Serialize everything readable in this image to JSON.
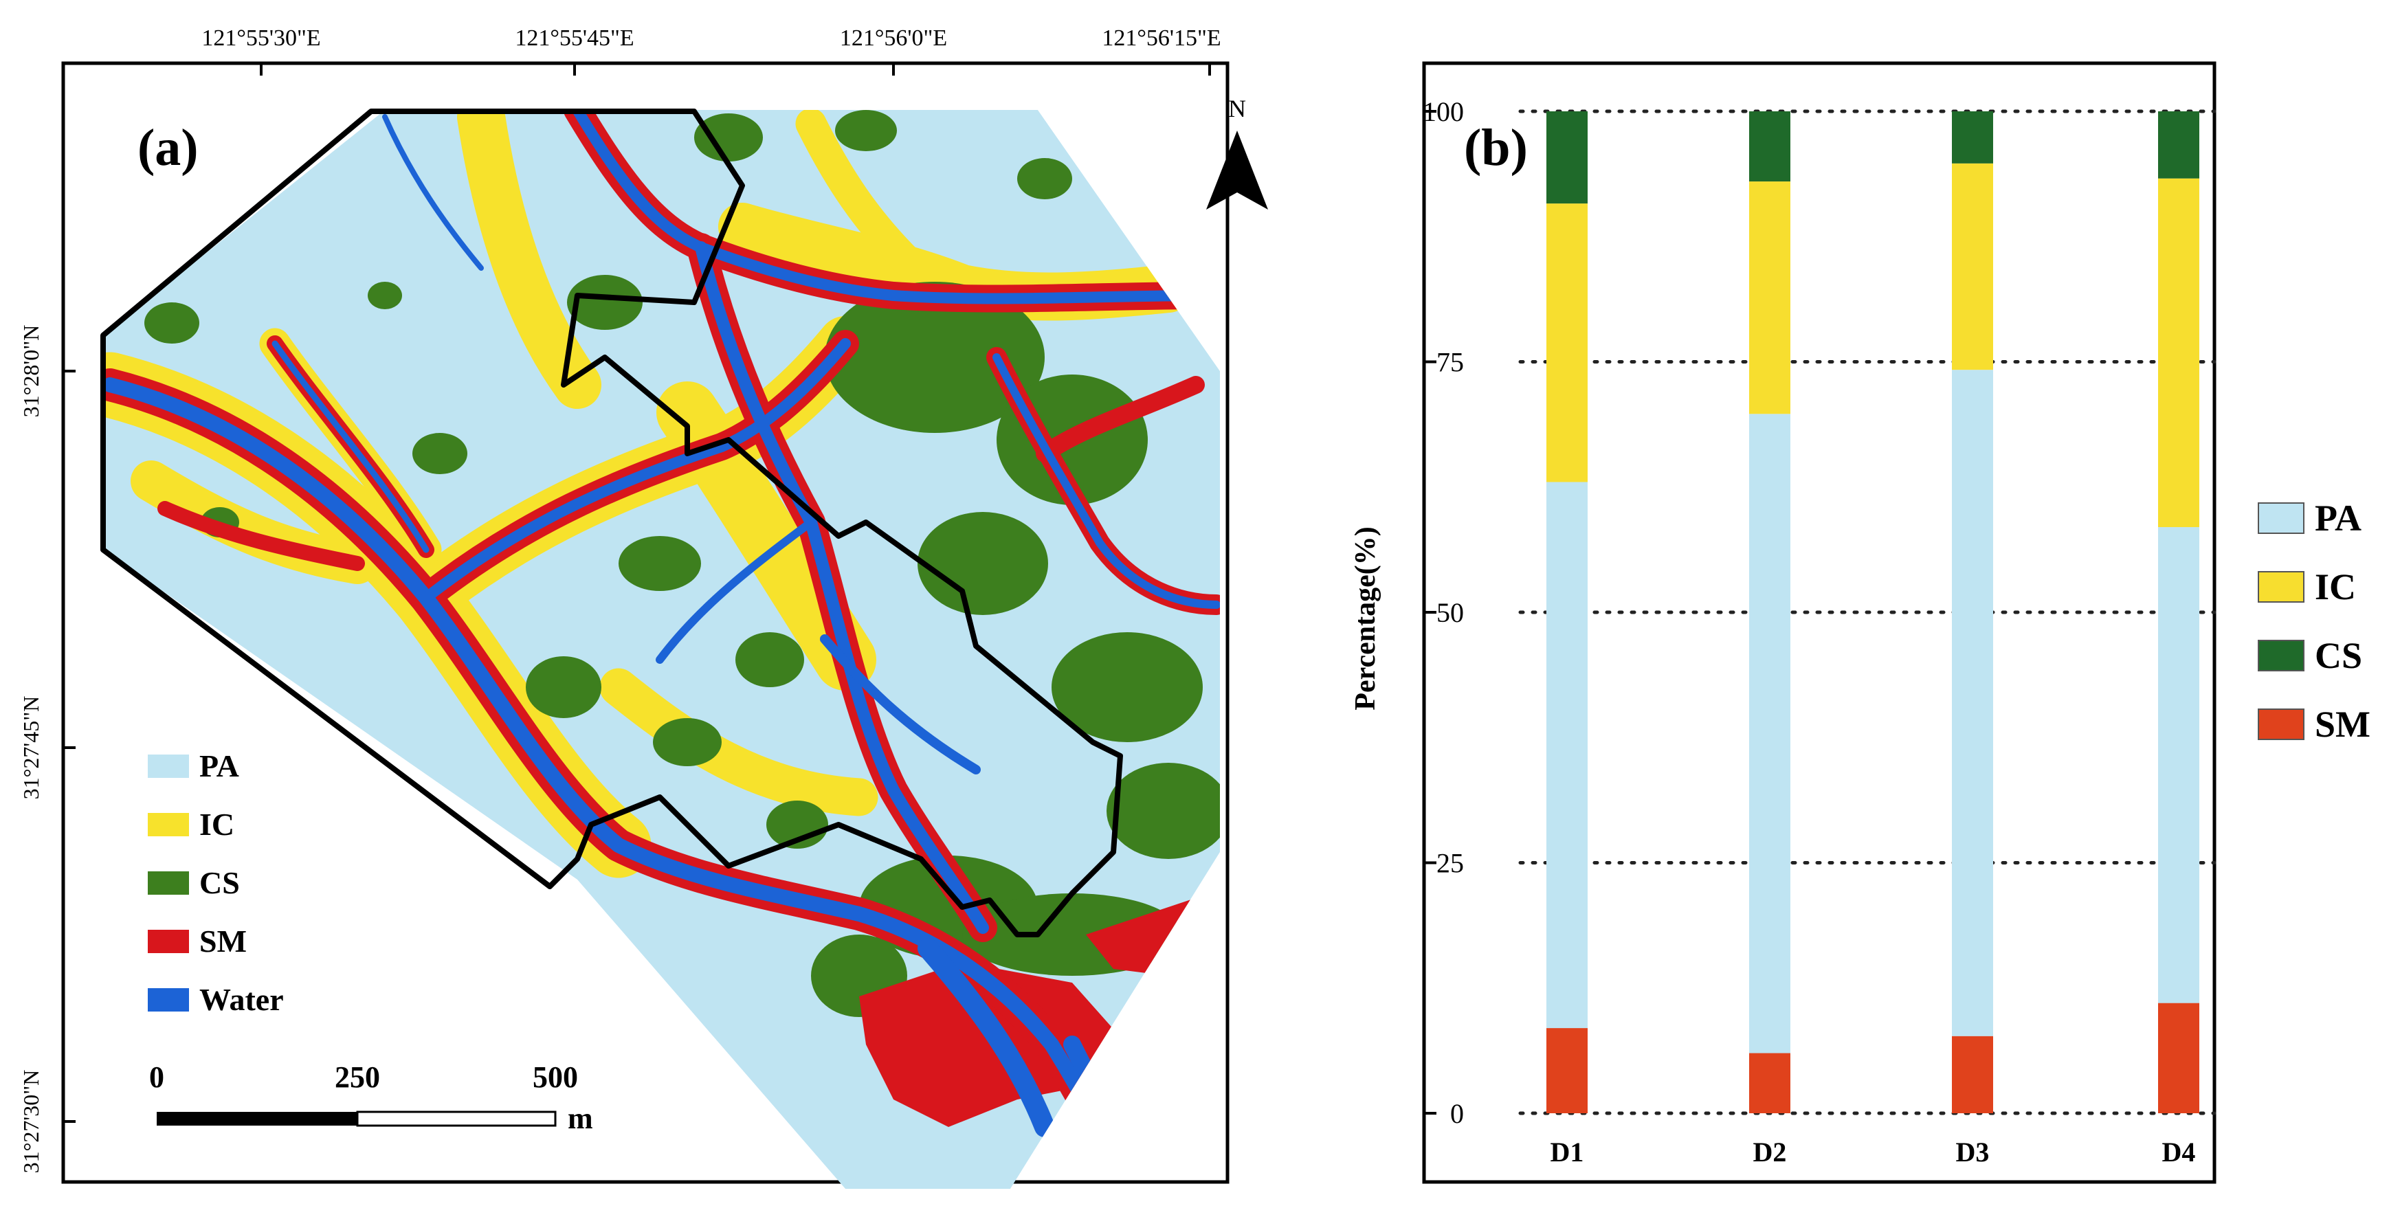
{
  "colors": {
    "PA": "#bfe4f2",
    "IC": "#f7de2f",
    "CS": "#1f6a2a",
    "SM": "#e0421c",
    "Water": "#1c63d6",
    "SM_map": "#d8161c",
    "CS_map": "#3d7f1e",
    "IC_map": "#f7e22c",
    "frame": "#000000",
    "grid": "#222222"
  },
  "map": {
    "panel_label": "(a)",
    "north_label": "N",
    "lon_ticks": [
      "121°55'30\"E",
      "121°55'45\"E",
      "121°56'0\"E",
      "121°56'15\"E"
    ],
    "lat_ticks": [
      "31°28'0\"N",
      "31°27'45\"N",
      "31°27'30\"N"
    ],
    "legend": [
      "PA",
      "IC",
      "CS",
      "SM",
      "Water"
    ],
    "scale": {
      "ticks": [
        "0",
        "250",
        "500"
      ],
      "unit": "m"
    }
  },
  "chart_data": {
    "type": "bar",
    "stacked": true,
    "panel_label": "(b)",
    "categories": [
      "D1",
      "D2",
      "D3",
      "D4"
    ],
    "ylabel": "Percentage(%)",
    "xlabel": "",
    "ylim": [
      0,
      100
    ],
    "yticks": [
      "0",
      "25",
      "50",
      "75",
      "100"
    ],
    "grid": "horizontal dotted",
    "legend_position": "right",
    "legend": [
      "PA",
      "IC",
      "CS",
      "SM"
    ],
    "series": [
      {
        "name": "SM",
        "values": [
          8.5,
          6.0,
          7.7,
          11.0
        ]
      },
      {
        "name": "PA",
        "values": [
          54.5,
          63.8,
          66.5,
          47.5
        ]
      },
      {
        "name": "IC",
        "values": [
          27.8,
          23.2,
          20.6,
          34.8
        ]
      },
      {
        "name": "CS",
        "values": [
          9.2,
          7.0,
          5.2,
          6.7
        ]
      }
    ]
  }
}
